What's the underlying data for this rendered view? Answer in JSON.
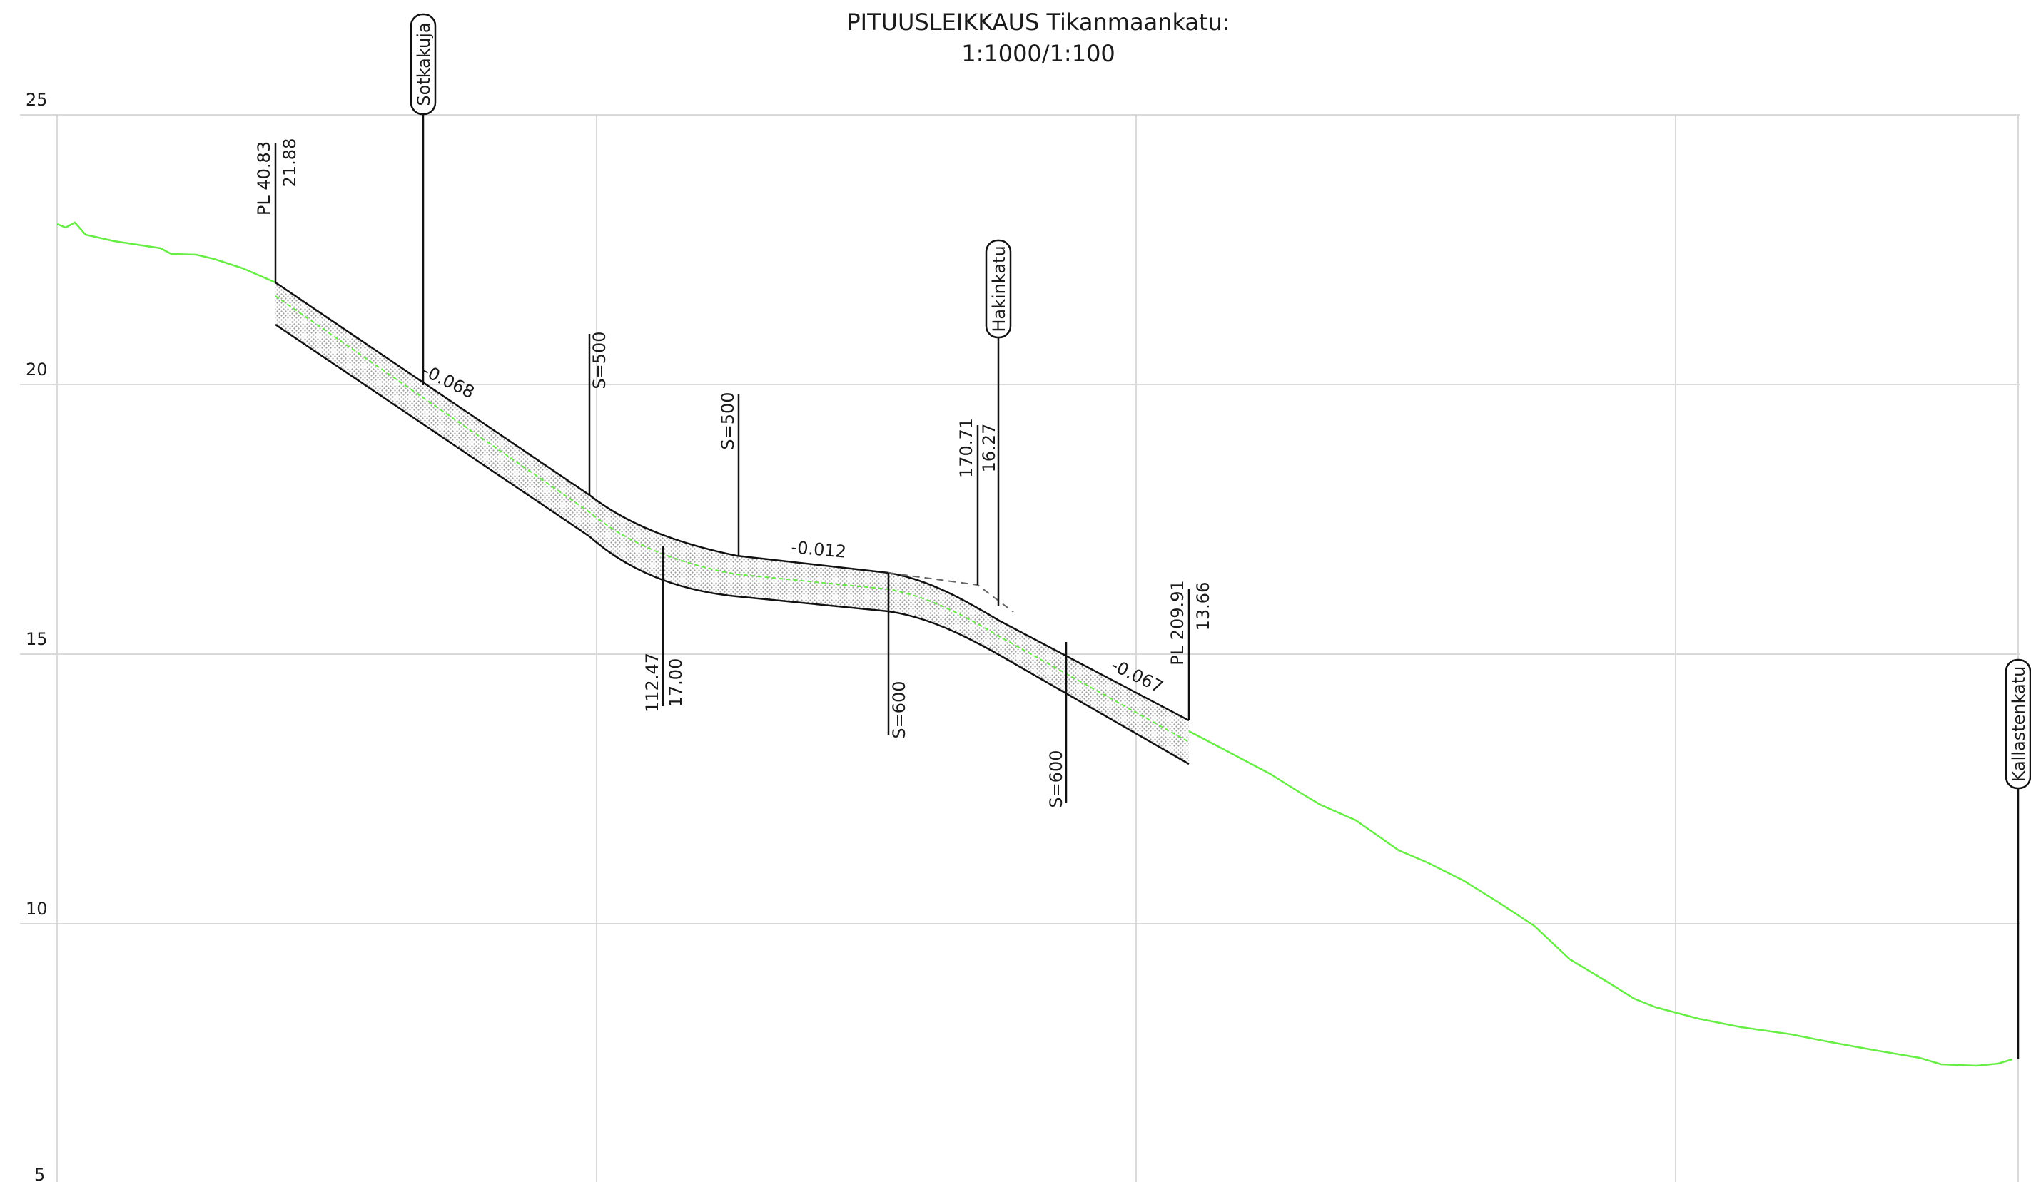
{
  "title": {
    "line1": "PITUUSLEIKKAUS Tikanmaankatu:",
    "line2": "1:1000/1:100"
  },
  "y_axis": {
    "ticks": [
      "25",
      "20",
      "15",
      "10",
      "5"
    ]
  },
  "colors": {
    "terrain": "#66ee44",
    "road_fill": "#c8c8c8",
    "grid": "#d9d9d9",
    "ink": "#111111"
  },
  "streets": {
    "sotkakuja": "Sotkakuja",
    "hakinkatu": "Hakinkatu",
    "kallastenkatu": "Kallastenkatu"
  },
  "grades": {
    "g1": "-0.068",
    "g2": "-0.012",
    "g3": "-0.067"
  },
  "curves": {
    "c1": "S=500",
    "c2": "S=500",
    "c3": "S=600",
    "c4": "S=600"
  },
  "stations": {
    "start_pl": "PL 40.83",
    "start_elev": "21.88",
    "pvi1_station": "112.47",
    "pvi1_elev": "17.00",
    "cross_station": "170.71",
    "cross_elev": "16.27",
    "end_pl": "PL 209.91",
    "end_elev": "13.66"
  }
}
